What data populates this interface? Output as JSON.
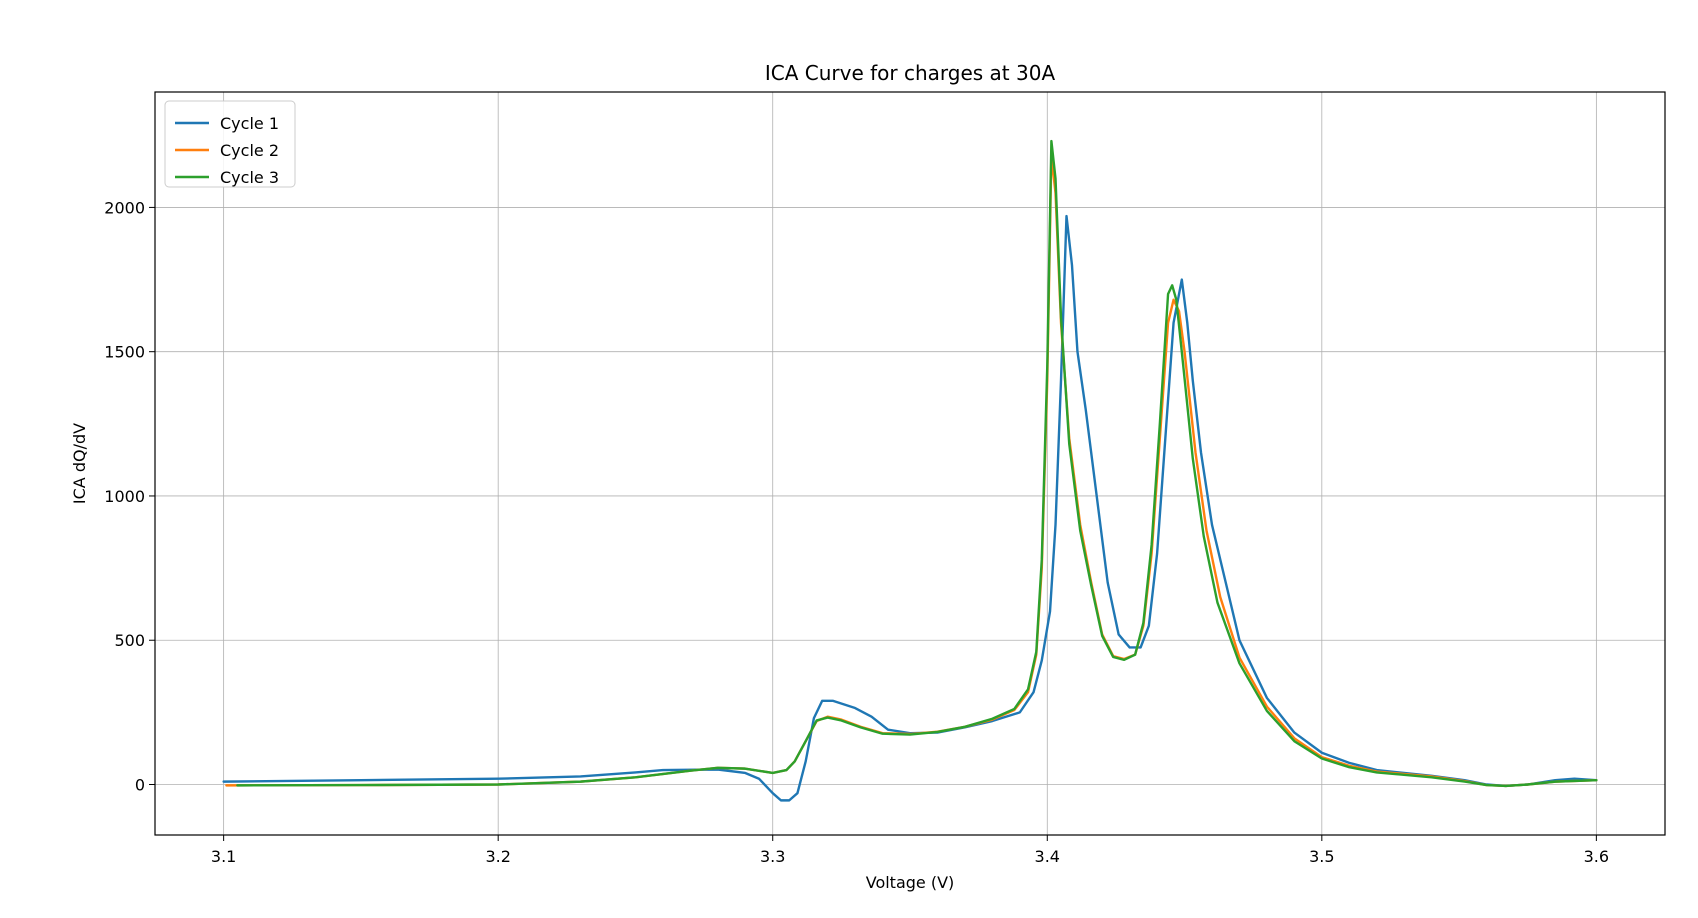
{
  "chart_data": {
    "type": "line",
    "title": "ICA Curve for charges at 30A",
    "xlabel": "Voltage (V)",
    "ylabel": "ICA dQ/dV",
    "xlim": [
      3.075,
      3.625
    ],
    "ylim": [
      -175,
      2400
    ],
    "xticks": [
      3.1,
      3.2,
      3.3,
      3.4,
      3.5,
      3.6
    ],
    "xtick_labels": [
      "3.1",
      "3.2",
      "3.3",
      "3.4",
      "3.5",
      "3.6"
    ],
    "yticks": [
      0,
      500,
      1000,
      1500,
      2000
    ],
    "ytick_labels": [
      "0",
      "500",
      "1000",
      "1500",
      "2000"
    ],
    "grid": true,
    "legend_position": "top-left",
    "series": [
      {
        "name": "Cycle 1",
        "color": "#1f77b4",
        "points": [
          [
            3.1,
            10
          ],
          [
            3.15,
            15
          ],
          [
            3.2,
            20
          ],
          [
            3.23,
            28
          ],
          [
            3.25,
            42
          ],
          [
            3.26,
            50
          ],
          [
            3.28,
            52
          ],
          [
            3.29,
            40
          ],
          [
            3.295,
            20
          ],
          [
            3.3,
            -30
          ],
          [
            3.303,
            -55
          ],
          [
            3.306,
            -55
          ],
          [
            3.309,
            -30
          ],
          [
            3.312,
            80
          ],
          [
            3.315,
            230
          ],
          [
            3.318,
            290
          ],
          [
            3.322,
            290
          ],
          [
            3.33,
            265
          ],
          [
            3.336,
            235
          ],
          [
            3.342,
            190
          ],
          [
            3.35,
            178
          ],
          [
            3.36,
            180
          ],
          [
            3.37,
            198
          ],
          [
            3.38,
            220
          ],
          [
            3.39,
            250
          ],
          [
            3.395,
            320
          ],
          [
            3.398,
            430
          ],
          [
            3.401,
            600
          ],
          [
            3.403,
            900
          ],
          [
            3.405,
            1400
          ],
          [
            3.407,
            1970
          ],
          [
            3.409,
            1800
          ],
          [
            3.411,
            1500
          ],
          [
            3.414,
            1300
          ],
          [
            3.418,
            1000
          ],
          [
            3.422,
            700
          ],
          [
            3.426,
            520
          ],
          [
            3.43,
            475
          ],
          [
            3.434,
            475
          ],
          [
            3.437,
            550
          ],
          [
            3.44,
            800
          ],
          [
            3.443,
            1200
          ],
          [
            3.446,
            1600
          ],
          [
            3.449,
            1750
          ],
          [
            3.451,
            1600
          ],
          [
            3.453,
            1400
          ],
          [
            3.456,
            1150
          ],
          [
            3.46,
            900
          ],
          [
            3.465,
            700
          ],
          [
            3.47,
            500
          ],
          [
            3.48,
            300
          ],
          [
            3.49,
            180
          ],
          [
            3.5,
            110
          ],
          [
            3.51,
            75
          ],
          [
            3.52,
            50
          ],
          [
            3.54,
            30
          ],
          [
            3.552,
            15
          ],
          [
            3.56,
            0
          ],
          [
            3.567,
            -5
          ],
          [
            3.575,
            0
          ],
          [
            3.585,
            15
          ],
          [
            3.592,
            20
          ],
          [
            3.6,
            15
          ]
        ]
      },
      {
        "name": "Cycle 2",
        "color": "#ff7f0e",
        "points": [
          [
            3.101,
            -3
          ],
          [
            3.15,
            -2
          ],
          [
            3.2,
            0
          ],
          [
            3.23,
            10
          ],
          [
            3.25,
            25
          ],
          [
            3.27,
            48
          ],
          [
            3.28,
            58
          ],
          [
            3.29,
            55
          ],
          [
            3.3,
            40
          ],
          [
            3.305,
            50
          ],
          [
            3.308,
            80
          ],
          [
            3.312,
            150
          ],
          [
            3.316,
            220
          ],
          [
            3.32,
            235
          ],
          [
            3.325,
            225
          ],
          [
            3.332,
            200
          ],
          [
            3.34,
            178
          ],
          [
            3.35,
            175
          ],
          [
            3.36,
            183
          ],
          [
            3.37,
            200
          ],
          [
            3.38,
            225
          ],
          [
            3.388,
            258
          ],
          [
            3.393,
            320
          ],
          [
            3.396,
            450
          ],
          [
            3.398,
            750
          ],
          [
            3.4,
            1400
          ],
          [
            3.4015,
            2180
          ],
          [
            3.403,
            2050
          ],
          [
            3.405,
            1600
          ],
          [
            3.408,
            1200
          ],
          [
            3.412,
            900
          ],
          [
            3.416,
            700
          ],
          [
            3.42,
            520
          ],
          [
            3.424,
            445
          ],
          [
            3.428,
            435
          ],
          [
            3.432,
            450
          ],
          [
            3.435,
            550
          ],
          [
            3.438,
            800
          ],
          [
            3.441,
            1200
          ],
          [
            3.444,
            1600
          ],
          [
            3.446,
            1680
          ],
          [
            3.448,
            1640
          ],
          [
            3.45,
            1500
          ],
          [
            3.454,
            1150
          ],
          [
            3.458,
            880
          ],
          [
            3.463,
            650
          ],
          [
            3.47,
            440
          ],
          [
            3.48,
            270
          ],
          [
            3.49,
            160
          ],
          [
            3.5,
            95
          ],
          [
            3.51,
            65
          ],
          [
            3.52,
            45
          ],
          [
            3.54,
            28
          ],
          [
            3.552,
            12
          ],
          [
            3.56,
            -2
          ],
          [
            3.567,
            -5
          ],
          [
            3.575,
            0
          ],
          [
            3.585,
            10
          ],
          [
            3.6,
            15
          ]
        ]
      },
      {
        "name": "Cycle 3",
        "color": "#2ca02c",
        "points": [
          [
            3.105,
            -3
          ],
          [
            3.15,
            -2
          ],
          [
            3.2,
            0
          ],
          [
            3.23,
            10
          ],
          [
            3.25,
            25
          ],
          [
            3.27,
            48
          ],
          [
            3.28,
            58
          ],
          [
            3.29,
            55
          ],
          [
            3.3,
            40
          ],
          [
            3.305,
            50
          ],
          [
            3.308,
            80
          ],
          [
            3.312,
            150
          ],
          [
            3.316,
            222
          ],
          [
            3.32,
            232
          ],
          [
            3.325,
            222
          ],
          [
            3.332,
            198
          ],
          [
            3.34,
            176
          ],
          [
            3.35,
            173
          ],
          [
            3.36,
            182
          ],
          [
            3.37,
            200
          ],
          [
            3.38,
            228
          ],
          [
            3.388,
            262
          ],
          [
            3.393,
            330
          ],
          [
            3.396,
            460
          ],
          [
            3.398,
            780
          ],
          [
            3.4,
            1450
          ],
          [
            3.4015,
            2230
          ],
          [
            3.403,
            2100
          ],
          [
            3.405,
            1620
          ],
          [
            3.408,
            1180
          ],
          [
            3.412,
            880
          ],
          [
            3.416,
            690
          ],
          [
            3.42,
            515
          ],
          [
            3.424,
            442
          ],
          [
            3.428,
            432
          ],
          [
            3.432,
            450
          ],
          [
            3.435,
            560
          ],
          [
            3.438,
            830
          ],
          [
            3.441,
            1250
          ],
          [
            3.444,
            1700
          ],
          [
            3.4455,
            1730
          ],
          [
            3.447,
            1680
          ],
          [
            3.449,
            1500
          ],
          [
            3.453,
            1130
          ],
          [
            3.457,
            860
          ],
          [
            3.462,
            630
          ],
          [
            3.47,
            420
          ],
          [
            3.48,
            255
          ],
          [
            3.49,
            150
          ],
          [
            3.5,
            90
          ],
          [
            3.51,
            60
          ],
          [
            3.52,
            42
          ],
          [
            3.54,
            25
          ],
          [
            3.552,
            10
          ],
          [
            3.56,
            -2
          ],
          [
            3.567,
            -5
          ],
          [
            3.575,
            0
          ],
          [
            3.585,
            10
          ],
          [
            3.6,
            15
          ]
        ]
      }
    ]
  }
}
